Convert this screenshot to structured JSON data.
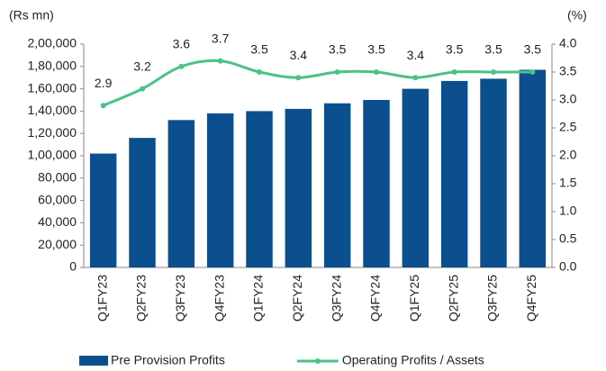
{
  "chart_data": {
    "type": "combo",
    "y_label": "(Rs mn)",
    "y2_label": "(%)",
    "categories": [
      "Q1FY23",
      "Q2FY23",
      "Q3FY23",
      "Q4FY23",
      "Q1FY24",
      "Q2FY24",
      "Q3FY24",
      "Q4FY24",
      "Q1FY25",
      "Q2FY25",
      "Q3FY25",
      "Q4FY25"
    ],
    "series": [
      {
        "name": "Pre Provision Profits",
        "type": "bar",
        "color": "#0b4f8f",
        "values": [
          102000,
          116000,
          132000,
          138000,
          140000,
          142000,
          147000,
          150000,
          160000,
          167000,
          169000,
          177000
        ]
      },
      {
        "name": "Operating Profits / Assets",
        "type": "line",
        "axis": "y2",
        "color": "#4cc28a",
        "values": [
          2.9,
          3.2,
          3.6,
          3.7,
          3.5,
          3.4,
          3.5,
          3.5,
          3.4,
          3.5,
          3.5,
          3.5
        ]
      }
    ],
    "ylim": [
      0,
      200000
    ],
    "yticks": [
      0,
      {
        "value": 20000,
        "label": "20,000"
      },
      {
        "value": 40000,
        "label": "40,000"
      },
      {
        "value": 60000,
        "label": "60,000"
      },
      {
        "value": 80000,
        "label": "80,000"
      },
      {
        "value": 100000,
        "label": "1,00,000"
      },
      {
        "value": 120000,
        "label": "1,20,000"
      },
      {
        "value": 140000,
        "label": "1,40,000"
      },
      {
        "value": 160000,
        "label": "1,60,000"
      },
      {
        "value": 180000,
        "label": "1,80,000"
      },
      {
        "value": 200000,
        "label": "2,00,000"
      }
    ],
    "y2lim": [
      0,
      4
    ],
    "y2ticks": [
      {
        "value": 0,
        "label": "0.0"
      },
      0.5,
      {
        "value": 1,
        "label": "1.0"
      },
      1.5,
      {
        "value": 2,
        "label": "2.0"
      },
      2.5,
      {
        "value": 3,
        "label": "3.0"
      },
      3.5,
      {
        "value": 4,
        "label": "4.0"
      }
    ],
    "legend": "bottom"
  }
}
